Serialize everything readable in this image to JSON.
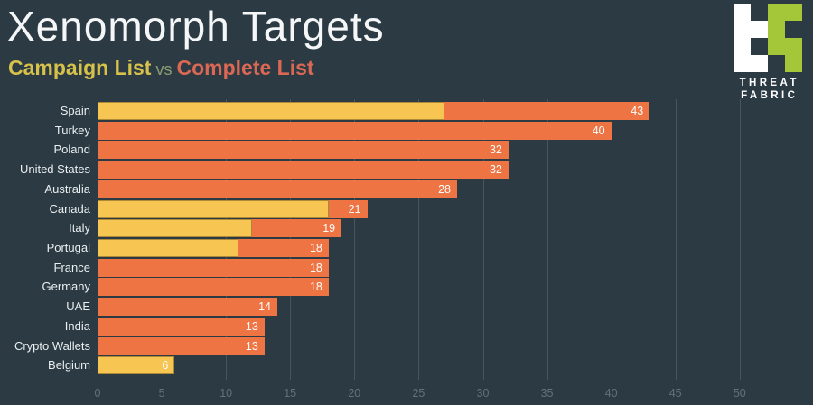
{
  "header": {
    "title": "Xenomorph Targets",
    "subtitle": {
      "campaign_label": "Campaign List",
      "vs_label": "vs",
      "complete_label": "Complete List"
    }
  },
  "logo": {
    "line1": "THREAT",
    "line2": "FABRIC",
    "mark_green": "#a4c639",
    "mark_white": "#ffffff"
  },
  "colors": {
    "background": "#2c3a43",
    "title_text": "#f4f6f7",
    "campaign_text": "#d6c14a",
    "vs_text": "#8b9e72",
    "complete_text": "#db6854",
    "bar_orange": "#ee7444",
    "bar_yellow": "#f6c552",
    "category_text": "#e9eef0",
    "value_text": "#fdfdfd",
    "axis_text": "#5f737b",
    "gridline": "#46565f"
  },
  "chart_data": {
    "type": "bar",
    "orientation": "horizontal",
    "title": "Xenomorph Targets",
    "subtitle": "Campaign List vs Complete List",
    "categories": [
      "Spain",
      "Turkey",
      "Poland",
      "United States",
      "Australia",
      "Canada",
      "Italy",
      "Portugal",
      "France",
      "Germany",
      "UAE",
      "India",
      "Crypto Wallets",
      "Belgium"
    ],
    "series": [
      {
        "name": "Complete List",
        "color": "#ee7444",
        "values": [
          43,
          40,
          32,
          32,
          28,
          21,
          19,
          18,
          18,
          18,
          14,
          13,
          13,
          6
        ]
      },
      {
        "name": "Campaign List",
        "color": "#f6c552",
        "values": [
          27,
          0,
          0,
          0,
          0,
          18,
          12,
          11,
          0,
          0,
          0,
          0,
          0,
          6
        ]
      }
    ],
    "value_labels": [
      "43",
      "40",
      "32",
      "32",
      "28",
      "21",
      "19",
      "18",
      "18",
      "18",
      "14",
      "13",
      "13",
      "6"
    ],
    "xlabel": "",
    "ylabel": "",
    "xlim": [
      0,
      55
    ],
    "xticks": [
      0,
      5,
      10,
      15,
      20,
      25,
      30,
      35,
      40,
      45,
      50
    ],
    "gridlines_at": [
      10,
      15,
      20,
      25,
      30,
      35,
      40,
      45,
      50
    ],
    "grid": true,
    "legend_position": "inline-subtitle"
  }
}
